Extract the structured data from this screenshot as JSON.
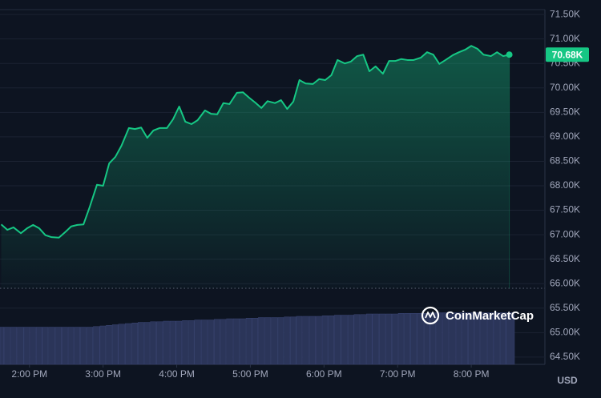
{
  "chart_data": {
    "type": "line",
    "color": "#16c784",
    "x": [
      817,
      822,
      827,
      833,
      838,
      843,
      848,
      853,
      858,
      864,
      869,
      874,
      879,
      884,
      889,
      895,
      900,
      905,
      910,
      915,
      921,
      926,
      931,
      936,
      941,
      946,
      952,
      957,
      962,
      967,
      972,
      977,
      983,
      988,
      993,
      998,
      1003,
      1009,
      1014,
      1019,
      1024,
      1029,
      1034,
      1040,
      1045,
      1050,
      1055,
      1060,
      1065,
      1071,
      1076,
      1081,
      1086,
      1091,
      1097,
      1102,
      1107,
      1112,
      1117,
      1122,
      1128,
      1133,
      1138,
      1143,
      1148,
      1153,
      1159,
      1164,
      1169,
      1174,
      1179,
      1185,
      1190,
      1195,
      1200,
      1205,
      1210,
      1216,
      1221,
      1226,
      1231
    ],
    "values": [
      67210,
      67100,
      67150,
      67030,
      67130,
      67200,
      67130,
      66990,
      66950,
      66940,
      67050,
      67170,
      67200,
      67210,
      67560,
      68020,
      68000,
      68460,
      68590,
      68820,
      69180,
      69160,
      69190,
      68980,
      69130,
      69180,
      69180,
      69360,
      69620,
      69310,
      69260,
      69340,
      69540,
      69470,
      69460,
      69690,
      69670,
      69900,
      69910,
      69800,
      69700,
      69590,
      69730,
      69690,
      69750,
      69570,
      69720,
      70160,
      70090,
      70080,
      70180,
      70160,
      70260,
      70570,
      70500,
      70540,
      70650,
      70680,
      70340,
      70440,
      70290,
      70550,
      70550,
      70590,
      70570,
      70570,
      70620,
      70730,
      70680,
      70490,
      70570,
      70670,
      70730,
      70780,
      70860,
      70800,
      70680,
      70650,
      70730,
      70650,
      70680
    ],
    "last_price_label": "70.68K",
    "volume": {
      "color": "#2b3559",
      "ylim": [
        0,
        100
      ],
      "values": [
        31,
        31,
        31,
        31,
        31,
        31,
        31,
        31,
        31,
        31,
        31,
        31,
        31,
        31,
        31,
        31.5,
        32,
        32.5,
        33,
        33.5,
        34,
        34.5,
        35,
        35,
        35.5,
        35.5,
        36,
        36,
        36,
        36.5,
        36.5,
        37,
        37,
        37,
        37.5,
        37.5,
        38,
        38,
        38,
        38.5,
        38.5,
        39,
        39,
        39,
        39,
        39.5,
        39.5,
        40,
        40,
        40,
        40,
        40.5,
        40.5,
        41,
        41,
        41,
        41.5,
        41.5,
        42,
        42,
        42,
        42,
        42,
        42.5,
        42.5,
        42.5,
        42.5,
        42.5,
        43,
        43,
        43,
        43,
        43,
        43,
        43,
        43,
        43,
        43,
        43,
        43,
        43
      ]
    },
    "xlim": [
      816,
      1260
    ],
    "xticks": [
      {
        "value": 840,
        "label": "2:00 PM"
      },
      {
        "value": 900,
        "label": "3:00 PM"
      },
      {
        "value": 960,
        "label": "4:00 PM"
      },
      {
        "value": 1020,
        "label": "5:00 PM"
      },
      {
        "value": 1080,
        "label": "6:00 PM"
      },
      {
        "value": 1140,
        "label": "7:00 PM"
      },
      {
        "value": 1200,
        "label": "8:00 PM"
      }
    ],
    "ylim": [
      64400,
      71600
    ],
    "yticks": [
      {
        "value": 64500,
        "label": "64.50K"
      },
      {
        "value": 65000,
        "label": "65.00K"
      },
      {
        "value": 65500,
        "label": "65.50K"
      },
      {
        "value": 66000,
        "label": "66.00K"
      },
      {
        "value": 66500,
        "label": "66.50K"
      },
      {
        "value": 67000,
        "label": "67.00K"
      },
      {
        "value": 67500,
        "label": "67.50K"
      },
      {
        "value": 68000,
        "label": "68.00K"
      },
      {
        "value": 68500,
        "label": "68.50K"
      },
      {
        "value": 69000,
        "label": "69.00K"
      },
      {
        "value": 69500,
        "label": "69.50K"
      },
      {
        "value": 70000,
        "label": "70.00K"
      },
      {
        "value": 70500,
        "label": "70.50K"
      },
      {
        "value": 71000,
        "label": "71.00K"
      },
      {
        "value": 71500,
        "label": "71.50K"
      }
    ],
    "grid": true,
    "currency": "USD",
    "watermark": "CoinMarketCap"
  }
}
